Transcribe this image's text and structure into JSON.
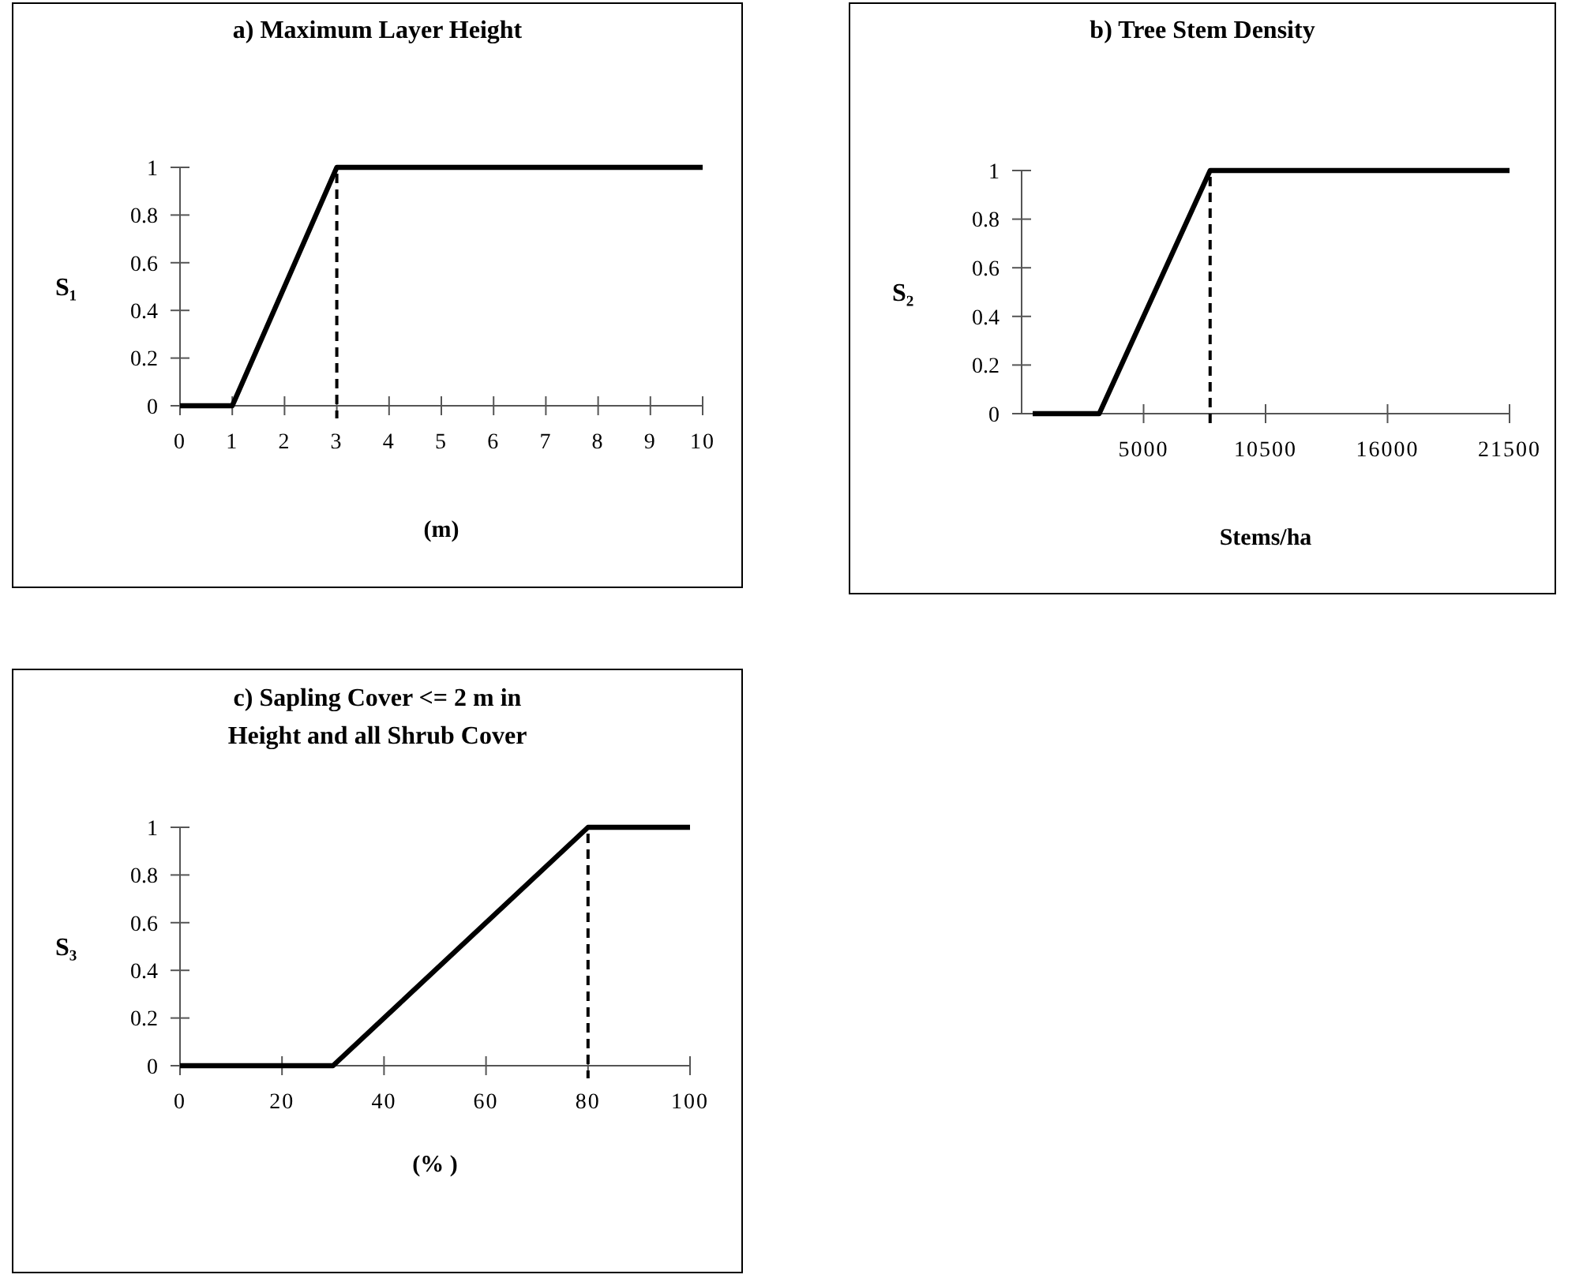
{
  "chart_data": [
    {
      "type": "line",
      "title": "a) Maximum Layer Height",
      "xlabel": "(m)",
      "ylabel": "S₁",
      "xlim": [
        0,
        10
      ],
      "xticks": [
        0,
        1,
        2,
        3,
        4,
        5,
        6,
        7,
        8,
        9,
        10
      ],
      "ylim": [
        0,
        1
      ],
      "yticks": [
        0,
        0.2,
        0.4,
        0.6,
        0.8,
        1
      ],
      "series": [
        {
          "color": "#000000",
          "x": [
            0,
            1,
            3,
            10
          ],
          "values": [
            0,
            0,
            1,
            1
          ]
        }
      ],
      "ref_lines": [
        {
          "axis": "x",
          "value": 3,
          "color": "#000000",
          "line_style": "dashed"
        }
      ]
    },
    {
      "type": "line",
      "title": "b) Tree Stem Density",
      "xlabel": "Stems/ha",
      "ylabel": "S₂",
      "xlim": [
        -500,
        21500
      ],
      "xticks": [
        5000,
        10500,
        16000,
        21500
      ],
      "ylim": [
        0,
        1
      ],
      "yticks": [
        0,
        0.2,
        0.4,
        0.6,
        0.8,
        1
      ],
      "series": [
        {
          "color": "#000000",
          "x": [
            0,
            3000,
            8000,
            21500
          ],
          "values": [
            0,
            0,
            1,
            1
          ]
        }
      ],
      "ref_lines": [
        {
          "axis": "x",
          "value": 8000,
          "color": "#000000",
          "line_style": "dashed"
        }
      ]
    },
    {
      "type": "line",
      "title": "c) Sapling Cover <= 2 m in Height and all Shrub Cover",
      "xlabel": "(% )",
      "ylabel": "S₃",
      "xlim": [
        0,
        100
      ],
      "xticks": [
        0,
        20,
        40,
        60,
        80,
        100
      ],
      "ylim": [
        0,
        1
      ],
      "yticks": [
        0,
        0.2,
        0.4,
        0.6,
        0.8,
        1
      ],
      "series": [
        {
          "color": "#000000",
          "x": [
            0,
            30,
            80,
            100
          ],
          "values": [
            0,
            0,
            1,
            1
          ]
        }
      ],
      "ref_lines": [
        {
          "axis": "x",
          "value": 80,
          "color": "#000000",
          "line_style": "dashed"
        }
      ]
    }
  ]
}
